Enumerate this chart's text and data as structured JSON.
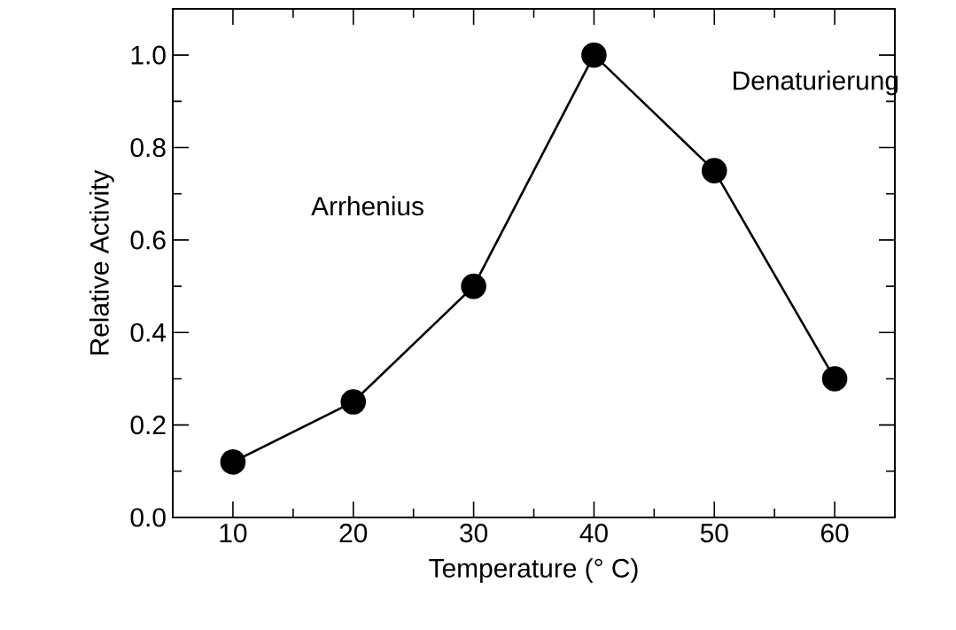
{
  "chart_data": {
    "type": "line",
    "xlabel": "Temperature (° C)",
    "ylabel": "Relative Activity",
    "x": [
      10,
      20,
      30,
      40,
      50,
      60
    ],
    "series": [
      {
        "color": "#000000",
        "values": [
          0.12,
          0.25,
          0.5,
          1.0,
          0.75,
          0.3
        ]
      }
    ],
    "xlim": [
      5,
      65
    ],
    "ylim": [
      0,
      1.1
    ],
    "xticks": [
      10,
      20,
      30,
      40,
      50,
      60
    ],
    "yticks": [
      {
        "value": 0,
        "label": "0.0"
      },
      {
        "value": 0.2,
        "label": "0.2"
      },
      {
        "value": 0.4,
        "label": "0.4"
      },
      {
        "value": 0.6,
        "label": "0.6"
      },
      {
        "value": 0.8,
        "label": "0.8"
      },
      {
        "value": 1.0,
        "label": "1.0"
      }
    ],
    "annotations": [
      "Arrhenius",
      "Denaturierung"
    ],
    "marker": "circle",
    "line_style": "solid",
    "grid": false
  }
}
